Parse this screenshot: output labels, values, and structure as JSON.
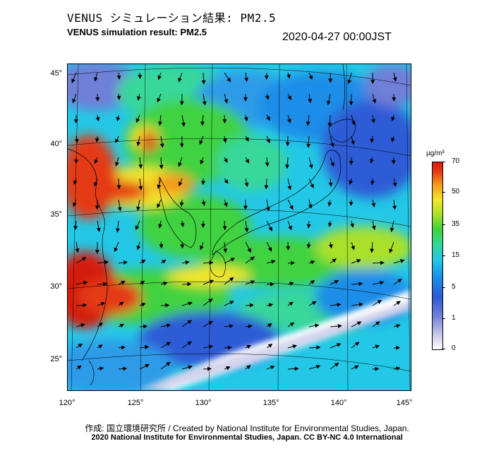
{
  "title_ja": "VENUS シミュレーション結果: PM2.5",
  "title_en": "VENUS simulation result: PM2.5",
  "timestamp": "2020-04-27 00:00JST",
  "lat_ticks": [
    "45°",
    "40°",
    "35°",
    "30°",
    "25°"
  ],
  "lon_ticks": [
    "120°",
    "125°",
    "130°",
    "135°",
    "140°",
    "145°"
  ],
  "colorbar": {
    "unit": "µg/m³",
    "labels": [
      "70",
      "50",
      "35",
      "15",
      "5",
      "1",
      "0"
    ]
  },
  "colors": {
    "background_field": "#23c8e6",
    "high_pollution": "#d41a10",
    "clean_air": "#ffffff"
  },
  "credits": {
    "line1": "作成: 国立環境研究所 / Created by National Institute for Environmental Studies, Japan.",
    "line2": "2020 National Institute for Environmental Studies, Japan. CC BY-NC 4.0 International"
  }
}
